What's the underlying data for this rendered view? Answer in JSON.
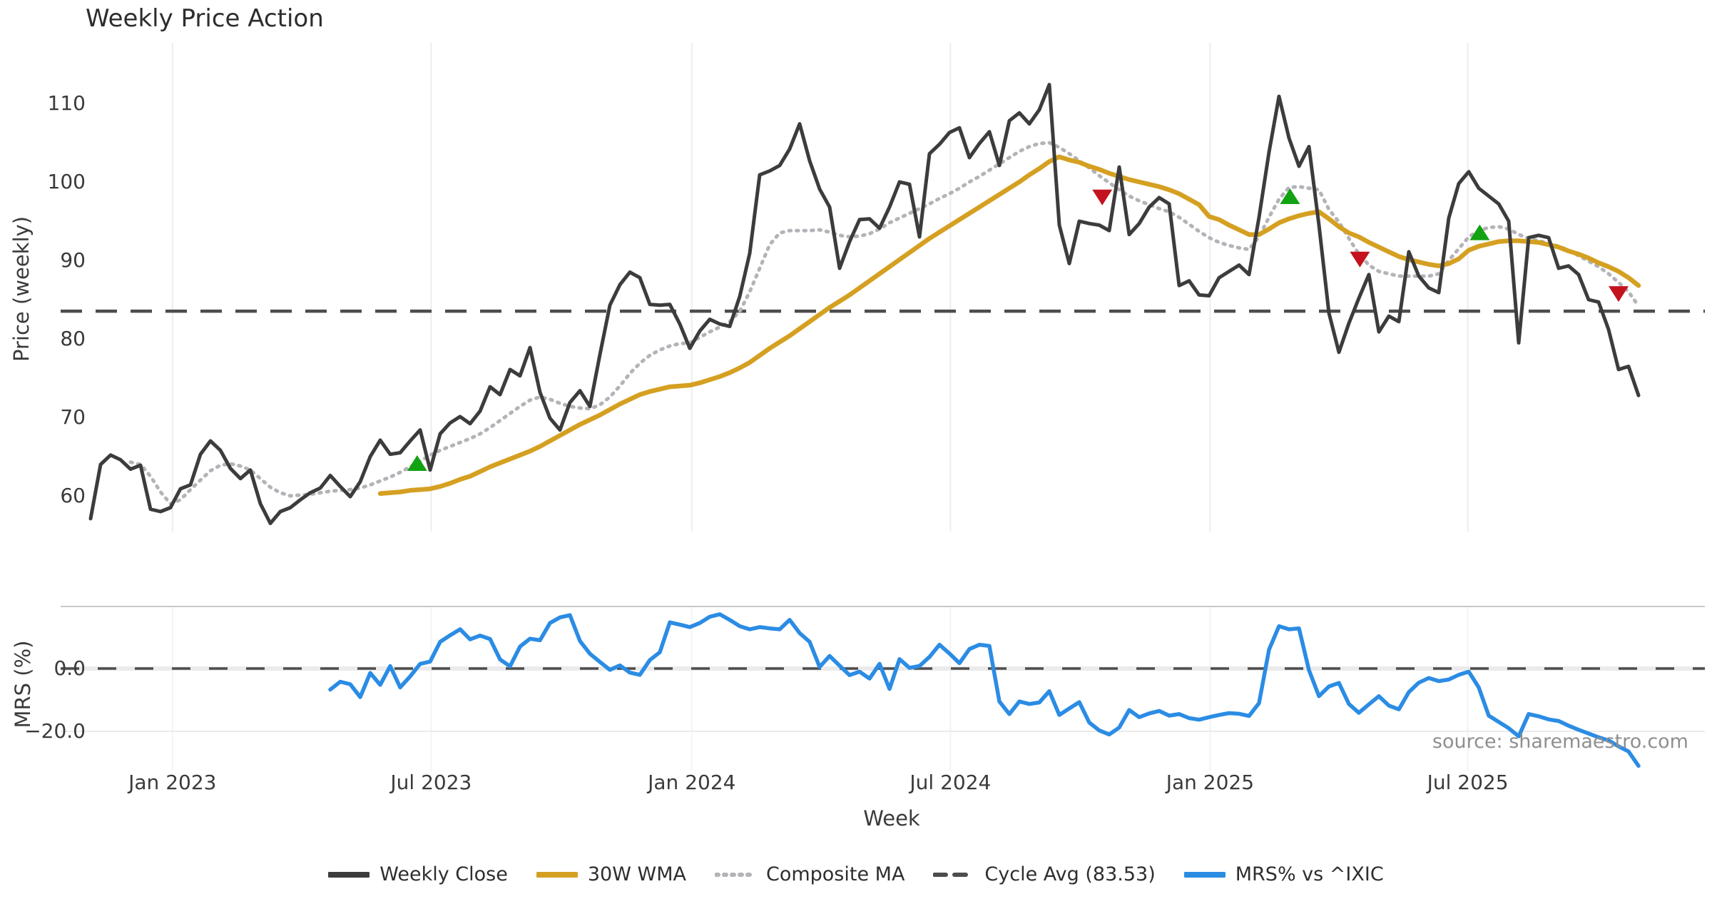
{
  "title": "Weekly Price Action",
  "source_note": "source: sharemaestro.com",
  "price_axis": {
    "label": "Price (weekly)",
    "ticks": [
      110,
      100,
      90,
      80,
      70,
      60
    ]
  },
  "mrs_axis": {
    "label": "MRS (%)",
    "ticks": [
      {
        "label": "0.0",
        "value": 0
      },
      {
        "label": "−20.0",
        "value": -20
      }
    ]
  },
  "x_axis": {
    "label": "Week",
    "ticks": [
      {
        "label": "Jan 2023",
        "week": 8.2
      },
      {
        "label": "Jul 2023",
        "week": 34.1
      },
      {
        "label": "Jan 2024",
        "week": 60.2
      },
      {
        "label": "Jul 2024",
        "week": 86.1
      },
      {
        "label": "Jan 2025",
        "week": 112.1
      },
      {
        "label": "Jul 2025",
        "week": 137.9
      }
    ]
  },
  "legend": {
    "items": [
      {
        "label": "Weekly Close",
        "style": "solid-dark"
      },
      {
        "label": "30W WMA",
        "style": "solid-gold"
      },
      {
        "label": "Composite MA",
        "style": "dotted-gray"
      },
      {
        "label": "Cycle Avg (83.53)",
        "style": "dashed-dark"
      },
      {
        "label": "MRS% vs ^IXIC",
        "style": "solid-blue"
      }
    ]
  },
  "colors": {
    "weekly_close": "#3c3c3c",
    "wma_30w": "#d5a021",
    "composite_ma": "#b3b3b8",
    "cycle_avg": "#4d4d4d",
    "mrs": "#2b8ce4",
    "buy_marker": "#12a312",
    "sell_marker": "#c4121f",
    "gridline": "#ececf2",
    "mrs_panel_top": "#c9c9c9",
    "mrs_minor_grid": "#ebebeb"
  },
  "chart_data": {
    "type": "line",
    "title": "Weekly Price Action",
    "xlabel": "Week",
    "ylabel_top": "Price (weekly)",
    "ylabel_bottom": "MRS (%)",
    "x_unit": "weeks starting early Nov 2022, one point per week",
    "cycle_avg": 83.53,
    "price_ylim": [
      55.5,
      117.7
    ],
    "mrs_ylim": [
      -36,
      20
    ],
    "legend_position": "bottom-center",
    "grid": "vertical-only",
    "series": [
      {
        "name": "Weekly Close",
        "start_week": 0,
        "values": [
          57.1,
          64.0,
          65.2,
          64.6,
          63.4,
          63.9,
          58.3,
          58.0,
          58.5,
          60.9,
          61.4,
          65.3,
          67.0,
          65.8,
          63.5,
          62.2,
          63.3,
          59.0,
          56.5,
          58.0,
          58.5,
          59.5,
          60.4,
          61.0,
          62.6,
          61.2,
          59.9,
          61.8,
          65.0,
          67.1,
          65.3,
          65.5,
          67.0,
          68.4,
          63.3,
          67.9,
          69.3,
          70.1,
          69.2,
          70.8,
          73.9,
          72.9,
          76.1,
          75.3,
          78.9,
          73.2,
          69.9,
          68.4,
          71.9,
          73.4,
          71.4,
          78.0,
          84.3,
          86.9,
          88.5,
          87.8,
          84.4,
          84.3,
          84.4,
          81.9,
          78.8,
          81.0,
          82.5,
          81.9,
          81.6,
          85.4,
          90.9,
          100.9,
          101.4,
          102.1,
          104.2,
          107.4,
          102.7,
          99.1,
          96.8,
          89.0,
          92.4,
          95.2,
          95.3,
          94.1,
          96.8,
          100.0,
          99.7,
          93.0,
          103.6,
          104.8,
          106.3,
          106.9,
          103.1,
          104.9,
          106.4,
          102.1,
          107.8,
          108.8,
          107.4,
          109.2,
          112.4,
          94.5,
          89.6,
          95.0,
          94.7,
          94.5,
          93.8,
          101.9,
          93.3,
          94.7,
          96.8,
          98.0,
          97.2,
          86.8,
          87.4,
          85.6,
          85.5,
          87.8,
          88.6,
          89.4,
          88.2,
          95.5,
          103.8,
          110.9,
          105.6,
          102.0,
          104.5,
          94.5,
          83.3,
          78.3,
          82.0,
          85.2,
          88.2,
          80.9,
          82.9,
          82.2,
          91.1,
          88.0,
          86.5,
          85.9,
          95.4,
          99.8,
          101.3,
          99.2,
          98.2,
          97.2,
          95.0,
          79.5,
          92.9,
          93.2,
          92.9,
          89.0,
          89.3,
          88.2,
          85.0,
          84.7,
          81.2,
          76.1,
          76.5,
          72.8
        ]
      },
      {
        "name": "30W WMA",
        "start_week": 29,
        "values": [
          60.3,
          60.4,
          60.5,
          60.7,
          60.8,
          60.9,
          61.2,
          61.6,
          62.1,
          62.5,
          63.1,
          63.7,
          64.2,
          64.7,
          65.2,
          65.7,
          66.3,
          67.0,
          67.7,
          68.4,
          69.1,
          69.7,
          70.3,
          71.0,
          71.7,
          72.3,
          72.9,
          73.3,
          73.6,
          73.9,
          74.0,
          74.1,
          74.4,
          74.8,
          75.2,
          75.7,
          76.3,
          77.0,
          77.9,
          78.8,
          79.6,
          80.4,
          81.3,
          82.2,
          83.1,
          84.0,
          84.8,
          85.6,
          86.5,
          87.4,
          88.3,
          89.2,
          90.1,
          91.0,
          91.9,
          92.8,
          93.6,
          94.4,
          95.2,
          96.0,
          96.8,
          97.6,
          98.4,
          99.2,
          100.0,
          100.9,
          101.7,
          102.6,
          103.2,
          102.8,
          102.5,
          102.0,
          101.6,
          101.1,
          100.7,
          100.3,
          100.0,
          99.7,
          99.4,
          99.0,
          98.5,
          97.8,
          97.1,
          95.6,
          95.2,
          94.5,
          93.9,
          93.3,
          93.3,
          94.0,
          94.8,
          95.3,
          95.7,
          96.0,
          96.2,
          95.3,
          94.3,
          93.5,
          93.0,
          92.3,
          91.7,
          91.1,
          90.5,
          90.1,
          89.8,
          89.5,
          89.3,
          89.6,
          90.2,
          91.3,
          91.8,
          92.1,
          92.4,
          92.5,
          92.5,
          92.4,
          92.3,
          92.0,
          91.7,
          91.2,
          90.8,
          90.3,
          89.7,
          89.2,
          88.6,
          87.8,
          86.8
        ]
      },
      {
        "name": "Composite MA",
        "start_week": 4,
        "values": [
          64.3,
          64.0,
          62.5,
          60.5,
          59.0,
          59.5,
          60.8,
          62.0,
          63.2,
          63.9,
          64.1,
          63.8,
          63.3,
          62.2,
          61.1,
          60.4,
          60.0,
          60.1,
          60.2,
          60.4,
          60.6,
          60.7,
          60.8,
          61.0,
          61.4,
          61.9,
          62.4,
          63.0,
          63.7,
          64.4,
          65.2,
          65.8,
          66.3,
          66.8,
          67.3,
          67.9,
          68.7,
          69.6,
          70.5,
          71.4,
          72.2,
          72.6,
          72.3,
          71.8,
          71.4,
          71.2,
          71.1,
          71.6,
          72.6,
          74.0,
          75.6,
          76.9,
          77.9,
          78.6,
          79.1,
          79.4,
          79.5,
          80.2,
          80.9,
          81.5,
          82.2,
          83.5,
          86.0,
          89.0,
          92.0,
          93.5,
          93.8,
          93.8,
          93.8,
          93.9,
          93.6,
          93.2,
          93.0,
          93.1,
          93.4,
          94.0,
          94.8,
          95.4,
          96.0,
          96.6,
          97.2,
          97.9,
          98.5,
          99.2,
          100.0,
          100.7,
          101.5,
          102.3,
          103.1,
          103.9,
          104.5,
          104.9,
          105.0,
          104.4,
          103.6,
          102.7,
          101.8,
          100.8,
          99.9,
          99.0,
          98.2,
          97.6,
          97.1,
          96.6,
          96.2,
          95.5,
          94.6,
          93.7,
          92.9,
          92.3,
          91.9,
          91.6,
          91.4,
          93.0,
          95.5,
          97.8,
          99.3,
          99.4,
          99.2,
          99.0,
          96.5,
          94.9,
          92.8,
          90.8,
          89.4,
          88.6,
          88.3,
          88.0,
          88.0,
          88.0,
          88.0,
          88.3,
          90.0,
          91.5,
          93.0,
          93.8,
          94.2,
          94.3,
          94.0,
          93.3,
          92.8,
          92.5,
          92.2,
          91.8,
          91.3,
          90.6,
          89.9,
          89.2,
          88.3,
          87.2,
          86.0,
          84.2
        ]
      },
      {
        "name": "MRS% vs ^IXIC",
        "start_week": 24,
        "values": [
          -6.7,
          -4.2,
          -5.0,
          -9.1,
          -1.4,
          -5.2,
          0.8,
          -6.0,
          -2.5,
          1.5,
          2.2,
          8.5,
          10.6,
          12.5,
          9.3,
          10.5,
          9.4,
          2.9,
          0.7,
          7.0,
          9.5,
          9.0,
          14.5,
          16.3,
          17.0,
          8.8,
          4.7,
          2.1,
          -0.4,
          1.0,
          -1.3,
          -2.0,
          2.7,
          5.2,
          14.7,
          14.0,
          13.2,
          14.5,
          16.5,
          17.3,
          15.5,
          13.5,
          12.5,
          13.2,
          12.8,
          12.5,
          15.5,
          11.3,
          8.5,
          0.5,
          4.0,
          0.9,
          -2.1,
          -1.0,
          -3.2,
          1.5,
          -6.5,
          3.0,
          0.2,
          0.8,
          3.7,
          7.6,
          4.8,
          1.7,
          6.2,
          7.6,
          7.2,
          -10.5,
          -14.5,
          -10.5,
          -11.3,
          -10.8,
          -7.2,
          -14.8,
          -12.7,
          -10.7,
          -17.2,
          -19.7,
          -21.0,
          -18.8,
          -13.2,
          -15.5,
          -14.3,
          -13.5,
          -15.0,
          -14.5,
          -15.8,
          -16.3,
          -15.5,
          -14.8,
          -14.2,
          -14.4,
          -15.1,
          -11.0,
          6.0,
          13.5,
          12.5,
          12.8,
          -0.5,
          -8.8,
          -5.7,
          -4.6,
          -11.3,
          -14.1,
          -11.4,
          -8.8,
          -11.8,
          -13.0,
          -7.5,
          -4.5,
          -3.0,
          -4.0,
          -3.5,
          -2.0,
          -1.0,
          -6.0,
          -15.0,
          -17.0,
          -19.0,
          -21.6,
          -14.5,
          -15.2,
          -16.2,
          -16.7,
          -18.2,
          -19.5,
          -20.7,
          -21.9,
          -22.9,
          -24.8,
          -26.4,
          -31.0
        ]
      }
    ],
    "signals": [
      {
        "type": "buy",
        "week": 32.7,
        "price": 64.0
      },
      {
        "type": "sell",
        "week": 101.3,
        "price": 98.2
      },
      {
        "type": "buy",
        "week": 120.1,
        "price": 98.0
      },
      {
        "type": "sell",
        "week": 127.1,
        "price": 90.3
      },
      {
        "type": "buy",
        "week": 139.1,
        "price": 93.4
      },
      {
        "type": "sell",
        "week": 153.0,
        "price": 85.9
      }
    ]
  }
}
